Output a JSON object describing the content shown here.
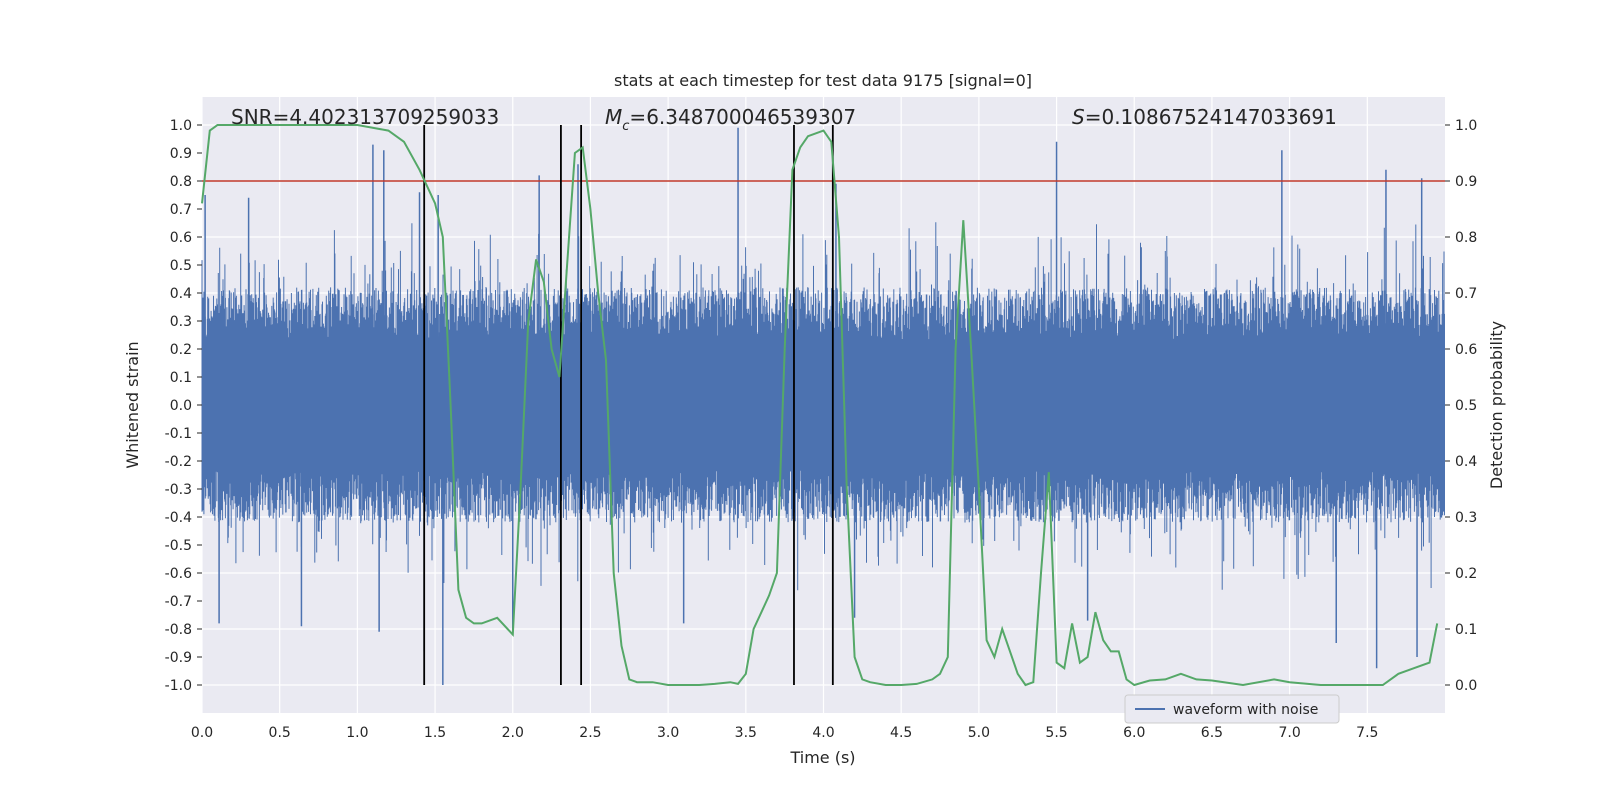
{
  "chart_data": {
    "type": "line",
    "title": "stats at each timestep for test data 9175 [signal=0]",
    "xlabel": "Time (s)",
    "ylabel_left": "Whitened strain",
    "ylabel_right": "Detection probability",
    "xlim": [
      0,
      8
    ],
    "ylim_left": [
      -1.1,
      1.1
    ],
    "ylim_right": [
      -0.05,
      1.05
    ],
    "x_ticks": [
      "0.0",
      "0.5",
      "1.0",
      "1.5",
      "2.0",
      "2.5",
      "3.0",
      "3.5",
      "4.0",
      "4.5",
      "5.0",
      "5.5",
      "6.0",
      "6.5",
      "7.0",
      "7.5"
    ],
    "y_ticks_left": [
      "1.0",
      "0.9",
      "0.8",
      "0.7",
      "0.6",
      "0.5",
      "0.4",
      "0.3",
      "0.2",
      "0.1",
      "0.0",
      "-0.1",
      "-0.2",
      "-0.3",
      "-0.4",
      "-0.5",
      "-0.6",
      "-0.7",
      "-0.8",
      "-0.9",
      "-1.0"
    ],
    "y_ticks_right": [
      "1.0",
      "0.9",
      "0.8",
      "0.7",
      "0.6",
      "0.5",
      "0.4",
      "0.3",
      "0.2",
      "0.1",
      "0.0"
    ],
    "grid": true,
    "annotations": {
      "snr": {
        "label": "SNR",
        "value": "4.402313709259033"
      },
      "mc": {
        "symbol": "M",
        "subscript": "c",
        "value": "6.348700046539307"
      },
      "s": {
        "symbol": "S",
        "value": "0.10867524147033691"
      }
    },
    "threshold": {
      "axis": "right",
      "value": 0.9,
      "color": "#c0392b"
    },
    "vertical_lines": [
      1.43,
      2.31,
      2.44,
      3.81,
      4.06
    ],
    "waveform": {
      "name": "waveform with noise",
      "color": "#4c72b0",
      "envelope_typical": 0.42,
      "peaks_up": [
        [
          0.02,
          0.75
        ],
        [
          0.3,
          0.74
        ],
        [
          1.1,
          0.93
        ],
        [
          1.17,
          0.91
        ],
        [
          1.4,
          0.76
        ],
        [
          1.52,
          0.75
        ],
        [
          2.17,
          0.82
        ],
        [
          2.42,
          0.86
        ],
        [
          3.45,
          0.99
        ],
        [
          4.08,
          0.79
        ],
        [
          5.5,
          0.94
        ],
        [
          6.95,
          0.91
        ],
        [
          7.62,
          0.84
        ],
        [
          7.85,
          0.81
        ]
      ],
      "peaks_down": [
        [
          0.11,
          -0.78
        ],
        [
          0.64,
          -0.79
        ],
        [
          1.14,
          -0.81
        ],
        [
          1.43,
          -0.88
        ],
        [
          1.55,
          -1.0
        ],
        [
          2.0,
          -0.82
        ],
        [
          3.1,
          -0.78
        ],
        [
          4.2,
          -0.76
        ],
        [
          5.7,
          -0.77
        ],
        [
          7.3,
          -0.85
        ],
        [
          7.56,
          -0.94
        ],
        [
          7.82,
          -0.9
        ]
      ]
    },
    "probability": {
      "name": "detection probability",
      "color": "#55a868",
      "x": [
        0.0,
        0.05,
        0.1,
        0.2,
        0.5,
        1.0,
        1.2,
        1.3,
        1.4,
        1.5,
        1.55,
        1.6,
        1.65,
        1.7,
        1.75,
        1.8,
        1.9,
        2.0,
        2.05,
        2.1,
        2.15,
        2.2,
        2.25,
        2.3,
        2.35,
        2.4,
        2.45,
        2.5,
        2.55,
        2.6,
        2.65,
        2.7,
        2.75,
        2.8,
        2.9,
        3.0,
        3.1,
        3.2,
        3.3,
        3.4,
        3.45,
        3.5,
        3.55,
        3.6,
        3.65,
        3.7,
        3.75,
        3.8,
        3.85,
        3.9,
        4.0,
        4.05,
        4.1,
        4.15,
        4.2,
        4.25,
        4.3,
        4.4,
        4.5,
        4.6,
        4.7,
        4.75,
        4.8,
        4.85,
        4.9,
        4.95,
        5.0,
        5.05,
        5.1,
        5.15,
        5.2,
        5.25,
        5.3,
        5.35,
        5.4,
        5.45,
        5.5,
        5.55,
        5.6,
        5.65,
        5.7,
        5.75,
        5.8,
        5.85,
        5.9,
        5.95,
        6.0,
        6.1,
        6.2,
        6.3,
        6.4,
        6.5,
        6.7,
        6.9,
        7.0,
        7.2,
        7.4,
        7.6,
        7.7,
        7.8,
        7.9,
        7.95
      ],
      "y": [
        0.86,
        0.99,
        1.0,
        1.0,
        1.0,
        1.0,
        0.99,
        0.97,
        0.92,
        0.86,
        0.8,
        0.5,
        0.17,
        0.12,
        0.11,
        0.11,
        0.12,
        0.09,
        0.35,
        0.65,
        0.76,
        0.72,
        0.6,
        0.55,
        0.75,
        0.95,
        0.96,
        0.85,
        0.7,
        0.58,
        0.2,
        0.07,
        0.01,
        0.005,
        0.005,
        0.0,
        0.0,
        0.0,
        0.002,
        0.005,
        0.002,
        0.02,
        0.1,
        0.13,
        0.16,
        0.2,
        0.6,
        0.92,
        0.96,
        0.98,
        0.99,
        0.97,
        0.8,
        0.35,
        0.05,
        0.01,
        0.005,
        0.0,
        0.0,
        0.002,
        0.01,
        0.02,
        0.05,
        0.6,
        0.83,
        0.6,
        0.35,
        0.08,
        0.05,
        0.1,
        0.06,
        0.02,
        0.0,
        0.005,
        0.2,
        0.38,
        0.04,
        0.03,
        0.11,
        0.04,
        0.05,
        0.13,
        0.08,
        0.06,
        0.06,
        0.01,
        0.0,
        0.008,
        0.01,
        0.02,
        0.01,
        0.008,
        0.0,
        0.01,
        0.005,
        0.0,
        0.0,
        0.0,
        0.02,
        0.03,
        0.04,
        0.11
      ]
    },
    "legend": {
      "placement": "bottom-right",
      "entries": [
        "waveform with noise"
      ]
    }
  }
}
